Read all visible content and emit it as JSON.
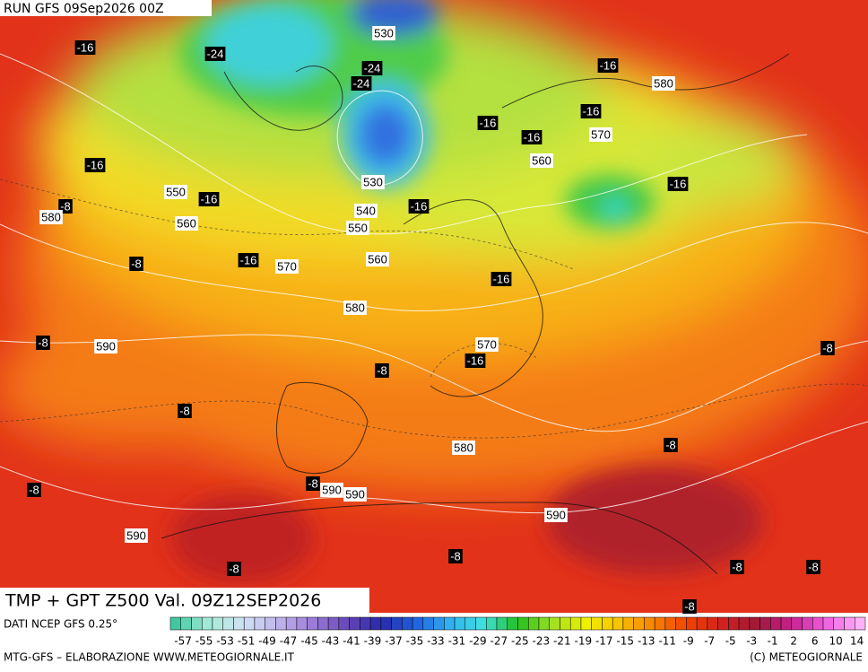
{
  "header": {
    "run": "RUN GFS 09Sep2026 00Z"
  },
  "title": "TMP + GPT Z500 Val. 09Z12SEP2026",
  "map": {
    "temperature_labels": [
      -16,
      -24,
      -24,
      -24,
      -16,
      -16,
      -16,
      -16,
      -16,
      -16,
      -8,
      -16,
      -16,
      -8,
      -16,
      -16,
      -8,
      -16,
      -8,
      -8,
      -8,
      -8,
      -8,
      -8,
      -8,
      -8,
      -8,
      -8,
      -8
    ],
    "height_labels": [
      530,
      580,
      570,
      560,
      530,
      550,
      540,
      580,
      560,
      550,
      560,
      570,
      580,
      590,
      570,
      580,
      590,
      590,
      590,
      590
    ]
  },
  "legend": {
    "source": "DATI NCEP GFS 0.25°",
    "scale_labels": [
      -57,
      -55,
      -53,
      -51,
      -49,
      -47,
      -45,
      -43,
      -41,
      -39,
      -37,
      -35,
      -33,
      -31,
      -29,
      -27,
      -25,
      -23,
      -21,
      -19,
      -17,
      -15,
      -13,
      -11,
      -9,
      -7,
      -5,
      -3,
      -1,
      2,
      6,
      10,
      14
    ]
  },
  "footer": {
    "left": "MTG-GFS – ELABORAZIONE WWW.METEOGIORNALE.IT",
    "right": "(C) METEOGIORNALE"
  }
}
